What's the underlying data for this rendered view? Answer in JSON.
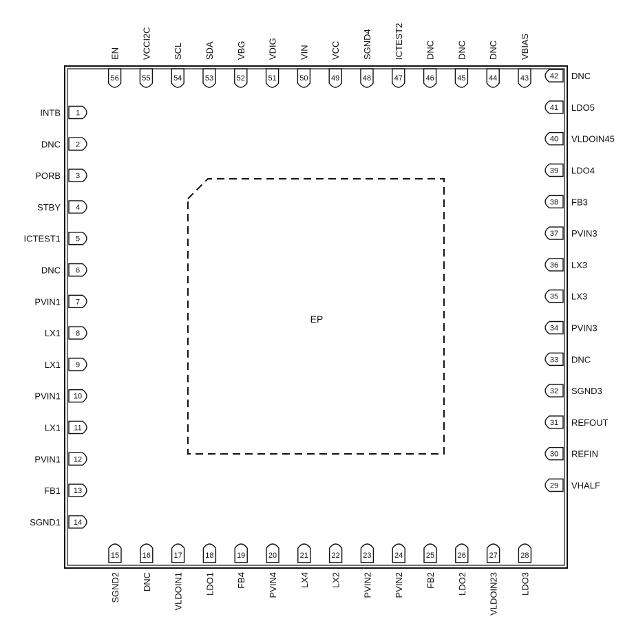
{
  "package": {
    "ep_label": "EP"
  },
  "pins": {
    "left": [
      {
        "num": "1",
        "name": "INTB"
      },
      {
        "num": "2",
        "name": "DNC"
      },
      {
        "num": "3",
        "name": "PORB"
      },
      {
        "num": "4",
        "name": "STBY"
      },
      {
        "num": "5",
        "name": "ICTEST1"
      },
      {
        "num": "6",
        "name": "DNC"
      },
      {
        "num": "7",
        "name": "PVIN1"
      },
      {
        "num": "8",
        "name": "LX1"
      },
      {
        "num": "9",
        "name": "LX1"
      },
      {
        "num": "10",
        "name": "PVIN1"
      },
      {
        "num": "11",
        "name": "LX1"
      },
      {
        "num": "12",
        "name": "PVIN1"
      },
      {
        "num": "13",
        "name": "FB1"
      },
      {
        "num": "14",
        "name": "SGND1"
      }
    ],
    "bottom": [
      {
        "num": "15",
        "name": "SGND2"
      },
      {
        "num": "16",
        "name": "DNC"
      },
      {
        "num": "17",
        "name": "VLDOIN1"
      },
      {
        "num": "18",
        "name": "LDO1"
      },
      {
        "num": "19",
        "name": "FB4"
      },
      {
        "num": "20",
        "name": "PVIN4"
      },
      {
        "num": "21",
        "name": "LX4"
      },
      {
        "num": "22",
        "name": "LX2"
      },
      {
        "num": "23",
        "name": "PVIN2"
      },
      {
        "num": "24",
        "name": "PVIN2"
      },
      {
        "num": "25",
        "name": "FB2"
      },
      {
        "num": "26",
        "name": "LDO2"
      },
      {
        "num": "27",
        "name": "VLDOIN23"
      },
      {
        "num": "28",
        "name": "LDO3"
      }
    ],
    "right": [
      {
        "num": "29",
        "name": "VHALF"
      },
      {
        "num": "30",
        "name": "REFIN"
      },
      {
        "num": "31",
        "name": "REFOUT"
      },
      {
        "num": "32",
        "name": "SGND3"
      },
      {
        "num": "33",
        "name": "DNC"
      },
      {
        "num": "34",
        "name": "PVIN3"
      },
      {
        "num": "35",
        "name": "LX3"
      },
      {
        "num": "36",
        "name": "LX3"
      },
      {
        "num": "37",
        "name": "PVIN3"
      },
      {
        "num": "38",
        "name": "FB3"
      },
      {
        "num": "39",
        "name": "LDO4"
      },
      {
        "num": "40",
        "name": "VLDOIN45"
      },
      {
        "num": "41",
        "name": "LDO5"
      },
      {
        "num": "42",
        "name": "DNC"
      }
    ],
    "top": [
      {
        "num": "43",
        "name": "VBIAS"
      },
      {
        "num": "44",
        "name": "DNC"
      },
      {
        "num": "45",
        "name": "DNC"
      },
      {
        "num": "46",
        "name": "DNC"
      },
      {
        "num": "47",
        "name": "ICTEST2"
      },
      {
        "num": "48",
        "name": "SGND4"
      },
      {
        "num": "49",
        "name": "VCC"
      },
      {
        "num": "50",
        "name": "VIN"
      },
      {
        "num": "51",
        "name": "VDIG"
      },
      {
        "num": "52",
        "name": "VBG"
      },
      {
        "num": "53",
        "name": "SDA"
      },
      {
        "num": "54",
        "name": "SCL"
      },
      {
        "num": "55",
        "name": "VCCI2C"
      },
      {
        "num": "56",
        "name": "EN"
      }
    ]
  }
}
